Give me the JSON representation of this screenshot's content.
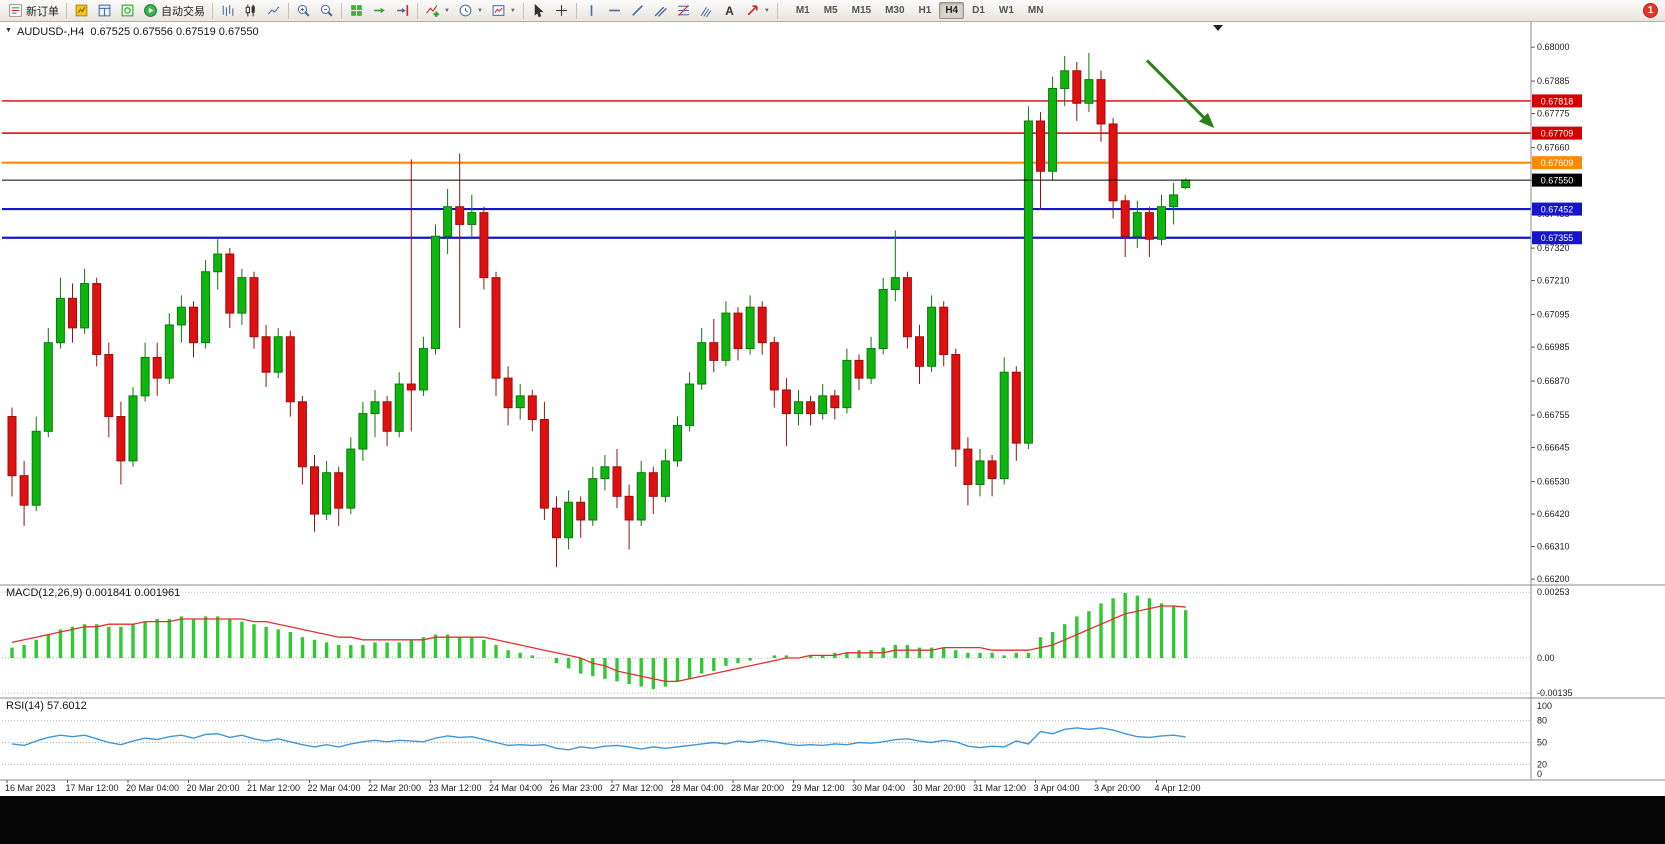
{
  "toolbar": {
    "new_order_label": "新订单",
    "auto_trading_label": "自动交易",
    "timeframes": [
      "M1",
      "M5",
      "M15",
      "M30",
      "H1",
      "H4",
      "D1",
      "W1",
      "MN"
    ],
    "active_timeframe": "H4",
    "notification_count": "1"
  },
  "chart": {
    "title": "AUDUSD-,H4  0.67525 0.67556 0.67519 0.67550"
  },
  "macd": {
    "title": "MACD(12,26,9) 0.001841 0.001961",
    "axis": [
      {
        "label": "0.00253",
        "value": 0.00253
      },
      {
        "label": "0.00",
        "value": 0
      },
      {
        "label": "-0.00135",
        "value": -0.00135
      }
    ]
  },
  "rsi": {
    "title": "RSI(14) 57.6012",
    "axis": [
      {
        "label": "100",
        "value": 100
      },
      {
        "label": "80",
        "value": 80
      },
      {
        "label": "50",
        "value": 50
      },
      {
        "label": "20",
        "value": 20
      },
      {
        "label": "0",
        "value": 0
      }
    ],
    "levels": [
      80,
      50,
      20
    ]
  },
  "chart_data": {
    "type": "candlestick",
    "symbol": "AUDUSD-",
    "timeframe": "H4",
    "last_candle": {
      "open": 0.67525,
      "high": 0.67556,
      "low": 0.67519,
      "close": 0.6755
    },
    "bid": {
      "price": 0.6755,
      "label": "0.67550"
    },
    "y_axis_labels": [
      "0.68000",
      "0.67885",
      "0.67775",
      "0.67660",
      "0.67550",
      "0.67435",
      "0.67320",
      "0.67210",
      "0.67095",
      "0.66985",
      "0.66870",
      "0.66755",
      "0.66645",
      "0.66530",
      "0.66420",
      "0.66310",
      "0.66200"
    ],
    "x_labels": [
      "16 Mar 2023",
      "17 Mar 12:00",
      "20 Mar 04:00",
      "20 Mar 20:00",
      "21 Mar 12:00",
      "22 Mar 04:00",
      "22 Mar 20:00",
      "23 Mar 12:00",
      "24 Mar 04:00",
      "26 Mar 23:00",
      "27 Mar 12:00",
      "28 Mar 04:00",
      "28 Mar 20:00",
      "29 Mar 12:00",
      "30 Mar 04:00",
      "30 Mar 20:00",
      "31 Mar 12:00",
      "3 Apr 04:00",
      "3 Apr 20:00",
      "4 Apr 12:00"
    ],
    "hlines": [
      {
        "price": 0.67818,
        "label": "0.67818",
        "color": "#d40000",
        "width": 1.4
      },
      {
        "price": 0.67709,
        "label": "0.67709",
        "color": "#d40000",
        "width": 1.4
      },
      {
        "price": 0.67609,
        "label": "0.67609",
        "color": "#ff8a00",
        "width": 2.2
      },
      {
        "price": 0.67452,
        "label": "0.67452",
        "color": "#1515cf",
        "width": 2.2
      },
      {
        "price": 0.67355,
        "label": "0.67355",
        "color": "#1515cf",
        "width": 2.2
      }
    ],
    "style": {
      "up_color": "#0fb50f",
      "up_border": "#0a7a0a",
      "down_color": "#e01010",
      "down_border": "#991010",
      "macd_histogram": "#2fca2f",
      "macd_signal": "#e03131",
      "rsi_line": "#4095d9",
      "bid_color": "#000000"
    },
    "candles": [
      [
        0.6675,
        0.6678,
        0.6648,
        0.6655
      ],
      [
        0.6655,
        0.666,
        0.6638,
        0.6645
      ],
      [
        0.6645,
        0.6675,
        0.6643,
        0.667
      ],
      [
        0.667,
        0.6705,
        0.6668,
        0.67
      ],
      [
        0.67,
        0.6722,
        0.6698,
        0.6715
      ],
      [
        0.6715,
        0.672,
        0.67,
        0.6705
      ],
      [
        0.6705,
        0.6725,
        0.6703,
        0.672
      ],
      [
        0.672,
        0.6722,
        0.6692,
        0.6696
      ],
      [
        0.6696,
        0.67,
        0.6668,
        0.6675
      ],
      [
        0.6675,
        0.668,
        0.6652,
        0.666
      ],
      [
        0.666,
        0.6685,
        0.6658,
        0.6682
      ],
      [
        0.6682,
        0.67,
        0.668,
        0.6695
      ],
      [
        0.6695,
        0.67,
        0.6682,
        0.6688
      ],
      [
        0.6688,
        0.671,
        0.6686,
        0.6706
      ],
      [
        0.6706,
        0.6716,
        0.67,
        0.6712
      ],
      [
        0.6712,
        0.6714,
        0.6695,
        0.67
      ],
      [
        0.67,
        0.6728,
        0.6698,
        0.6724
      ],
      [
        0.6724,
        0.6735,
        0.6718,
        0.673
      ],
      [
        0.673,
        0.6732,
        0.6705,
        0.671
      ],
      [
        0.671,
        0.6725,
        0.6706,
        0.6722
      ],
      [
        0.6722,
        0.6724,
        0.6698,
        0.6702
      ],
      [
        0.6702,
        0.6706,
        0.6685,
        0.669
      ],
      [
        0.669,
        0.6705,
        0.6688,
        0.6702
      ],
      [
        0.6702,
        0.6704,
        0.6675,
        0.668
      ],
      [
        0.668,
        0.6682,
        0.6652,
        0.6658
      ],
      [
        0.6658,
        0.6662,
        0.6636,
        0.6642
      ],
      [
        0.6642,
        0.666,
        0.664,
        0.6656
      ],
      [
        0.6656,
        0.6658,
        0.6638,
        0.6644
      ],
      [
        0.6644,
        0.6668,
        0.6642,
        0.6664
      ],
      [
        0.6664,
        0.668,
        0.666,
        0.6676
      ],
      [
        0.6676,
        0.6684,
        0.6668,
        0.668
      ],
      [
        0.668,
        0.6682,
        0.6665,
        0.667
      ],
      [
        0.667,
        0.669,
        0.6668,
        0.6686
      ],
      [
        0.6686,
        0.6762,
        0.667,
        0.6684
      ],
      [
        0.6684,
        0.6702,
        0.6682,
        0.6698
      ],
      [
        0.6698,
        0.674,
        0.6696,
        0.6736
      ],
      [
        0.6736,
        0.6752,
        0.673,
        0.6746
      ],
      [
        0.6746,
        0.6764,
        0.6705,
        0.674
      ],
      [
        0.674,
        0.675,
        0.6735,
        0.6744
      ],
      [
        0.6744,
        0.6746,
        0.6718,
        0.6722
      ],
      [
        0.6722,
        0.6724,
        0.6682,
        0.6688
      ],
      [
        0.6688,
        0.6692,
        0.6672,
        0.6678
      ],
      [
        0.6678,
        0.6686,
        0.6674,
        0.6682
      ],
      [
        0.6682,
        0.6684,
        0.667,
        0.6674
      ],
      [
        0.6674,
        0.668,
        0.664,
        0.6644
      ],
      [
        0.6644,
        0.6648,
        0.6624,
        0.6634
      ],
      [
        0.6634,
        0.665,
        0.663,
        0.6646
      ],
      [
        0.6646,
        0.6648,
        0.6634,
        0.664
      ],
      [
        0.664,
        0.6658,
        0.6638,
        0.6654
      ],
      [
        0.6654,
        0.6662,
        0.665,
        0.6658
      ],
      [
        0.6658,
        0.6664,
        0.6644,
        0.6648
      ],
      [
        0.6648,
        0.6652,
        0.663,
        0.664
      ],
      [
        0.664,
        0.666,
        0.6638,
        0.6656
      ],
      [
        0.6656,
        0.6658,
        0.6642,
        0.6648
      ],
      [
        0.6648,
        0.6664,
        0.6646,
        0.666
      ],
      [
        0.666,
        0.6675,
        0.6658,
        0.6672
      ],
      [
        0.6672,
        0.669,
        0.667,
        0.6686
      ],
      [
        0.6686,
        0.6705,
        0.6684,
        0.67
      ],
      [
        0.67,
        0.6708,
        0.669,
        0.6694
      ],
      [
        0.6694,
        0.6714,
        0.6692,
        0.671
      ],
      [
        0.671,
        0.6712,
        0.6694,
        0.6698
      ],
      [
        0.6698,
        0.6716,
        0.6696,
        0.6712
      ],
      [
        0.6712,
        0.6714,
        0.6696,
        0.67
      ],
      [
        0.67,
        0.6702,
        0.6678,
        0.6684
      ],
      [
        0.6684,
        0.6688,
        0.6665,
        0.6676
      ],
      [
        0.6676,
        0.6684,
        0.6672,
        0.668
      ],
      [
        0.668,
        0.6682,
        0.6672,
        0.6676
      ],
      [
        0.6676,
        0.6686,
        0.6674,
        0.6682
      ],
      [
        0.6682,
        0.6684,
        0.6674,
        0.6678
      ],
      [
        0.6678,
        0.6698,
        0.6676,
        0.6694
      ],
      [
        0.6694,
        0.6696,
        0.6684,
        0.6688
      ],
      [
        0.6688,
        0.6702,
        0.6686,
        0.6698
      ],
      [
        0.6698,
        0.6722,
        0.6696,
        0.6718
      ],
      [
        0.6718,
        0.6738,
        0.6714,
        0.6722
      ],
      [
        0.6722,
        0.6724,
        0.6698,
        0.6702
      ],
      [
        0.6702,
        0.6706,
        0.6686,
        0.6692
      ],
      [
        0.6692,
        0.6716,
        0.669,
        0.6712
      ],
      [
        0.6712,
        0.6714,
        0.6692,
        0.6696
      ],
      [
        0.6696,
        0.6698,
        0.6658,
        0.6664
      ],
      [
        0.6664,
        0.6668,
        0.6645,
        0.6652
      ],
      [
        0.6652,
        0.6664,
        0.6648,
        0.666
      ],
      [
        0.666,
        0.6662,
        0.6648,
        0.6654
      ],
      [
        0.6654,
        0.6695,
        0.6652,
        0.669
      ],
      [
        0.669,
        0.6692,
        0.666,
        0.6666
      ],
      [
        0.6666,
        0.678,
        0.6664,
        0.6775
      ],
      [
        0.6775,
        0.6778,
        0.6745,
        0.6758
      ],
      [
        0.6758,
        0.679,
        0.6755,
        0.6786
      ],
      [
        0.6786,
        0.6797,
        0.678,
        0.6792
      ],
      [
        0.6792,
        0.6795,
        0.6775,
        0.6781
      ],
      [
        0.6781,
        0.6798,
        0.6778,
        0.6789
      ],
      [
        0.6789,
        0.6792,
        0.6768,
        0.6774
      ],
      [
        0.6774,
        0.6776,
        0.6742,
        0.6748
      ],
      [
        0.6748,
        0.675,
        0.6729,
        0.6736
      ],
      [
        0.6736,
        0.6748,
        0.6732,
        0.6744
      ],
      [
        0.6744,
        0.6746,
        0.6729,
        0.6735
      ],
      [
        0.6735,
        0.675,
        0.6733,
        0.6746
      ],
      [
        0.6746,
        0.6754,
        0.674,
        0.675
      ],
      [
        0.67525,
        0.67556,
        0.67519,
        0.6755
      ]
    ],
    "indicators": {
      "macd": {
        "params": "12,26,9",
        "value": 0.001841,
        "signal_value": 0.001961,
        "histogram": [
          0.0004,
          0.0005,
          0.0007,
          0.0009,
          0.0011,
          0.0012,
          0.0013,
          0.0013,
          0.0012,
          0.0012,
          0.0013,
          0.0014,
          0.0015,
          0.0015,
          0.0016,
          0.0015,
          0.0016,
          0.0016,
          0.0015,
          0.0014,
          0.0013,
          0.0012,
          0.0011,
          0.001,
          0.0008,
          0.0007,
          0.0006,
          0.0005,
          0.0005,
          0.0005,
          0.0006,
          0.0006,
          0.0006,
          0.0007,
          0.0008,
          0.0009,
          0.0009,
          0.0008,
          0.0008,
          0.0007,
          0.0005,
          0.0003,
          0.0002,
          0.0001,
          0.0,
          -0.0002,
          -0.0004,
          -0.0006,
          -0.0007,
          -0.0008,
          -0.0009,
          -0.001,
          -0.0011,
          -0.0012,
          -0.0011,
          -0.0009,
          -0.0008,
          -0.0006,
          -0.0005,
          -0.0003,
          -0.0002,
          -0.0001,
          0.0,
          0.0001,
          0.0001,
          0.0,
          0.0001,
          0.0001,
          0.0002,
          0.0002,
          0.0003,
          0.0003,
          0.0004,
          0.0005,
          0.0005,
          0.0004,
          0.0004,
          0.0004,
          0.0003,
          0.0002,
          0.0002,
          0.0002,
          0.0001,
          0.0002,
          0.0002,
          0.0008,
          0.001,
          0.0013,
          0.0016,
          0.0018,
          0.0021,
          0.0023,
          0.0025,
          0.0024,
          0.0023,
          0.0021,
          0.002,
          0.00184
        ],
        "signal": [
          0.0006,
          0.0007,
          0.0008,
          0.0009,
          0.001,
          0.0011,
          0.0012,
          0.0012,
          0.0013,
          0.0013,
          0.0013,
          0.0014,
          0.0014,
          0.0014,
          0.0015,
          0.0015,
          0.0015,
          0.0015,
          0.0015,
          0.0015,
          0.0014,
          0.0014,
          0.0013,
          0.0012,
          0.0011,
          0.001,
          0.0009,
          0.0008,
          0.0008,
          0.0007,
          0.0007,
          0.0007,
          0.0007,
          0.0007,
          0.0007,
          0.0008,
          0.0008,
          0.0008,
          0.0008,
          0.0008,
          0.0007,
          0.0006,
          0.0005,
          0.0004,
          0.0003,
          0.0002,
          0.0001,
          0.0,
          -0.0002,
          -0.0003,
          -0.0005,
          -0.0006,
          -0.0007,
          -0.0008,
          -0.0009,
          -0.0009,
          -0.0008,
          -0.0007,
          -0.0006,
          -0.0005,
          -0.0004,
          -0.0003,
          -0.0002,
          -0.0001,
          0.0,
          0.0,
          0.0001,
          0.0001,
          0.0001,
          0.0002,
          0.0002,
          0.0002,
          0.0002,
          0.0003,
          0.0003,
          0.0003,
          0.0003,
          0.0004,
          0.0004,
          0.0004,
          0.0004,
          0.0003,
          0.0003,
          0.0003,
          0.0003,
          0.0004,
          0.0005,
          0.0007,
          0.0009,
          0.0011,
          0.0013,
          0.0015,
          0.0017,
          0.0018,
          0.0019,
          0.002,
          0.002,
          0.00196
        ]
      },
      "rsi": {
        "period": 14,
        "value": 57.6012,
        "values": [
          48,
          46,
          52,
          57,
          60,
          58,
          60,
          55,
          50,
          47,
          52,
          56,
          54,
          58,
          60,
          56,
          61,
          62,
          57,
          60,
          55,
          52,
          55,
          51,
          47,
          44,
          47,
          44,
          48,
          51,
          53,
          51,
          53,
          52,
          51,
          56,
          59,
          57,
          58,
          54,
          50,
          46,
          47,
          46,
          47,
          42,
          40,
          44,
          42,
          45,
          46,
          44,
          41,
          44,
          42,
          44,
          46,
          48,
          50,
          48,
          52,
          50,
          53,
          51,
          48,
          46,
          47,
          46,
          48,
          47,
          50,
          49,
          51,
          54,
          55,
          52,
          50,
          53,
          51,
          45,
          43,
          45,
          44,
          52,
          48,
          65,
          62,
          68,
          70,
          68,
          70,
          67,
          62,
          58,
          57,
          59,
          60,
          57.6
        ]
      }
    },
    "annotations": [
      {
        "type": "arrow",
        "from": {
          "index": 93.8,
          "price": 0.67955
        },
        "to": {
          "index": 99.2,
          "price": 0.67733
        },
        "color": "#2f7e1f"
      }
    ]
  }
}
